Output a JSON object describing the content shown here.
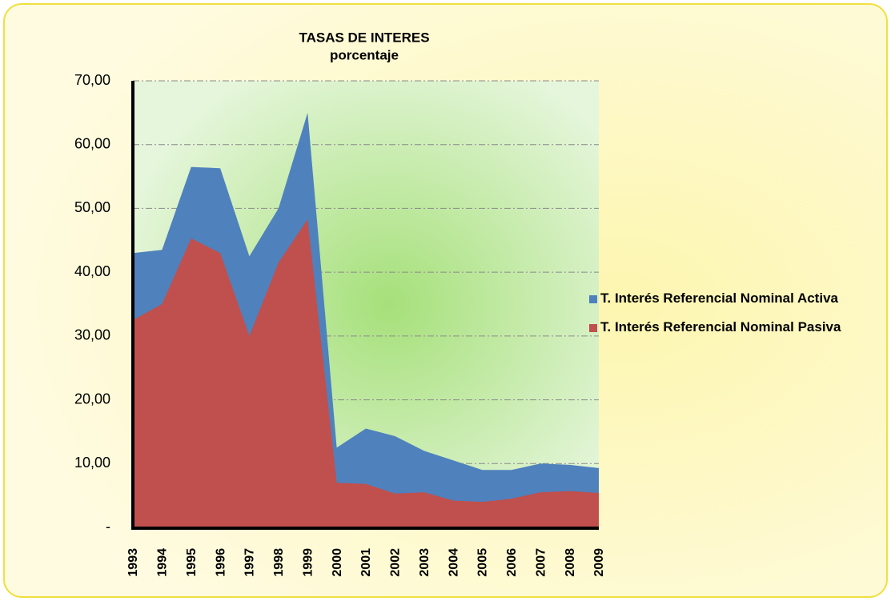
{
  "chart_data": {
    "type": "area",
    "title": "TASAS DE INTERES",
    "subtitle": "porcentaje",
    "categories": [
      "1993",
      "1994",
      "1995",
      "1996",
      "1997",
      "1998",
      "1999",
      "2000",
      "2001",
      "2002",
      "2003",
      "2004",
      "2005",
      "2006",
      "2007",
      "2008",
      "2009"
    ],
    "series": [
      {
        "name": "T. Interés Referencial Nominal Activa",
        "color": "#4f81bd",
        "values": [
          43,
          43.5,
          56.5,
          56.3,
          42.5,
          50,
          65,
          12.5,
          15.5,
          14.3,
          12,
          10.5,
          9,
          9,
          10,
          9.8,
          9.3
        ]
      },
      {
        "name": "T. Interés Referencial Nominal Pasiva",
        "color": "#c0504d",
        "values": [
          32.5,
          35,
          45.3,
          43,
          30,
          41.5,
          48.3,
          7,
          6.8,
          5.3,
          5.5,
          4.2,
          4,
          4.5,
          5.5,
          5.7,
          5.4
        ]
      }
    ],
    "ylim": [
      0,
      70
    ],
    "yticks": [
      {
        "value": 0,
        "label": "-"
      },
      {
        "value": 10,
        "label": "10,00"
      },
      {
        "value": 20,
        "label": "20,00"
      },
      {
        "value": 30,
        "label": "30,00"
      },
      {
        "value": 40,
        "label": "40,00"
      },
      {
        "value": 50,
        "label": "50,00"
      },
      {
        "value": 60,
        "label": "60,00"
      },
      {
        "value": 70,
        "label": "70,00"
      }
    ],
    "grid": true,
    "legend": "right"
  }
}
